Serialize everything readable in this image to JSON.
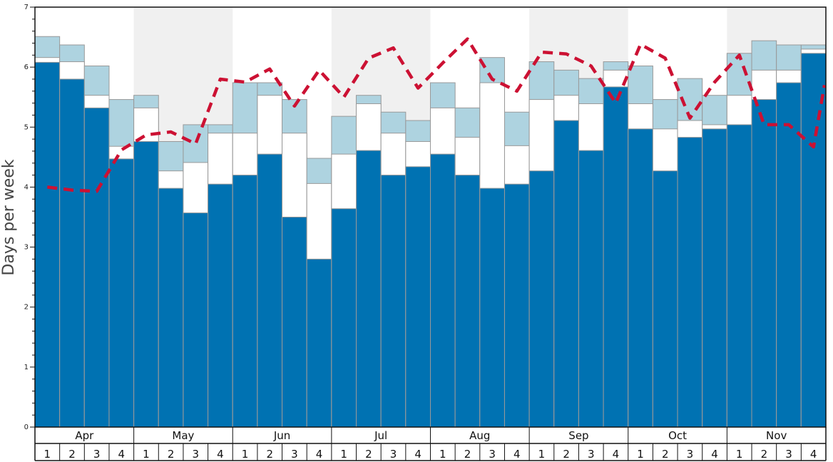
{
  "chart_data": {
    "type": "bar",
    "ylabel": "Days per week",
    "ylim": [
      0,
      7
    ],
    "y_ticks": [
      "0",
      "1",
      "2",
      "3",
      "4",
      "5",
      "6",
      "7"
    ],
    "months": [
      "Apr",
      "May",
      "Jun",
      "Jul",
      "Aug",
      "Sep",
      "Oct",
      "Nov"
    ],
    "weeks": [
      "1",
      "2",
      "3",
      "4"
    ],
    "shaded_months": [
      "May",
      "Jul",
      "Sep",
      "Nov"
    ],
    "colors": {
      "dark": "#0072b2",
      "middle": "#ffffff",
      "light": "#aed3e0",
      "line": "#cc1133",
      "shade": "#f0f0f0"
    },
    "series": [
      {
        "values": [
          6.08,
          5.8,
          5.32,
          4.47,
          4.76,
          3.98,
          3.57,
          4.05,
          4.2,
          4.55,
          3.5,
          2.8,
          3.64,
          4.61,
          4.2,
          4.34,
          4.55,
          4.2,
          3.98,
          4.05,
          4.27,
          5.11,
          4.61,
          5.67,
          4.97,
          4.27,
          4.83,
          4.97,
          5.04,
          5.46,
          5.74,
          6.23
        ]
      },
      {
        "values": [
          6.16,
          6.09,
          5.53,
          4.68,
          5.32,
          4.27,
          4.41,
          4.9,
          4.9,
          5.53,
          4.9,
          4.06,
          4.55,
          5.39,
          4.9,
          4.76,
          5.32,
          4.83,
          5.74,
          4.69,
          5.46,
          5.53,
          5.39,
          5.95,
          5.39,
          4.97,
          5.11,
          5.04,
          5.53,
          5.95,
          5.95,
          6.3
        ]
      },
      {
        "values": [
          6.51,
          6.37,
          6.02,
          5.46,
          5.53,
          4.76,
          5.04,
          5.04,
          5.74,
          5.74,
          5.46,
          4.48,
          5.18,
          5.53,
          5.25,
          5.11,
          5.74,
          5.32,
          6.16,
          5.25,
          6.09,
          5.95,
          5.81,
          6.09,
          6.02,
          5.46,
          5.81,
          5.53,
          6.23,
          6.44,
          6.37,
          6.37
        ]
      },
      {
        "values": [
          4.0,
          3.95,
          3.93,
          4.62,
          4.87,
          4.92,
          4.72,
          5.8,
          5.75,
          5.97,
          5.35,
          5.95,
          5.5,
          6.15,
          6.32,
          5.65,
          6.07,
          6.47,
          5.8,
          5.6,
          6.25,
          6.22,
          6.02,
          5.4,
          6.38,
          6.15,
          5.15,
          5.75,
          6.2,
          5.04,
          5.04,
          4.67,
          5.7
        ]
      }
    ]
  }
}
